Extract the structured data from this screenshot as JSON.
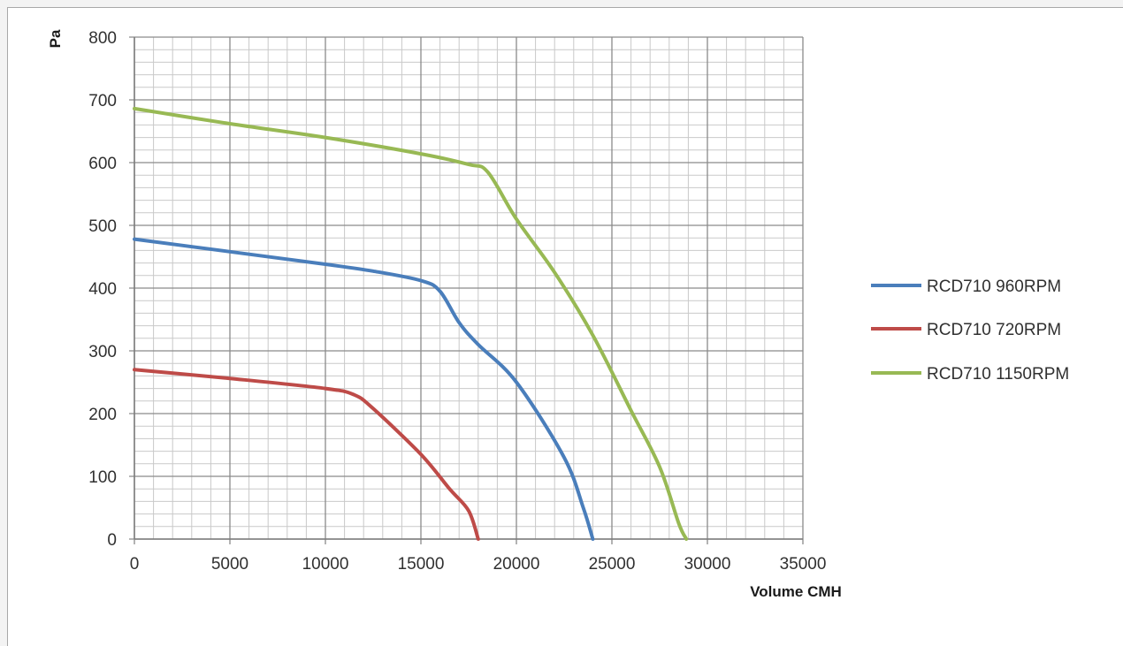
{
  "chart_data": {
    "type": "line",
    "title": "",
    "xlabel": "Volume CMH",
    "ylabel": "Pa",
    "xlim": [
      0,
      35000
    ],
    "ylim": [
      0,
      800
    ],
    "x_ticks": [
      "0",
      "5000",
      "10000",
      "15000",
      "20000",
      "25000",
      "30000",
      "35000"
    ],
    "y_ticks": [
      "0",
      "100",
      "200",
      "300",
      "400",
      "500",
      "600",
      "700",
      "800"
    ],
    "grid": true,
    "legend_position": "right",
    "series": [
      {
        "name": "RCD710 960RPM",
        "color": "#4a7ebb",
        "x": [
          0,
          5000,
          10000,
          12500,
          15000,
          16000,
          17000,
          18000,
          20000,
          22500,
          23500,
          24000
        ],
        "y": [
          478,
          458,
          438,
          427,
          412,
          395,
          345,
          310,
          250,
          130,
          50,
          0
        ]
      },
      {
        "name": "RCD710 720RPM",
        "color": "#be4b48",
        "x": [
          0,
          5000,
          10000,
          11500,
          12500,
          15000,
          16500,
          17500,
          18000
        ],
        "y": [
          270,
          256,
          240,
          230,
          208,
          135,
          80,
          45,
          0
        ]
      },
      {
        "name": "RCD710 1150RPM",
        "color": "#98b954",
        "x": [
          0,
          5000,
          10000,
          15000,
          17500,
          18500,
          20000,
          22000,
          24000,
          26000,
          27500,
          28500,
          28900
        ],
        "y": [
          686,
          662,
          640,
          614,
          597,
          585,
          510,
          425,
          325,
          205,
          115,
          25,
          0
        ]
      }
    ]
  }
}
